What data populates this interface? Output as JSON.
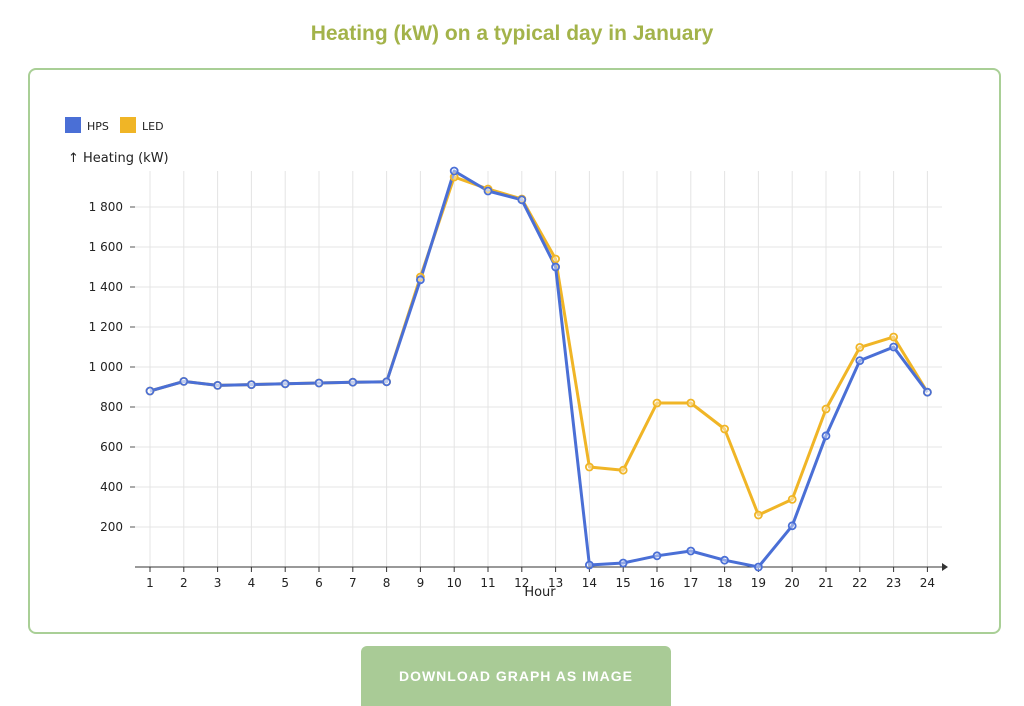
{
  "page": {
    "title": "Heating (kW) on a typical day in January"
  },
  "download_button_label": "DOWNLOAD GRAPH AS IMAGE",
  "chart_data": {
    "type": "line",
    "title": "Heating (kW) on a typical day in January",
    "xlabel": "Hour",
    "ylabel": "↑ Heating (kW)",
    "categories": [
      "1",
      "2",
      "3",
      "4",
      "5",
      "6",
      "7",
      "8",
      "9",
      "10",
      "11",
      "12",
      "13",
      "14",
      "15",
      "16",
      "17",
      "18",
      "19",
      "20",
      "21",
      "22",
      "23",
      "24"
    ],
    "yticks": [
      200,
      400,
      600,
      800,
      1000,
      1200,
      1400,
      1600,
      1800
    ],
    "ytick_labels": [
      "200",
      "400",
      "600",
      "800",
      "1 000",
      "1 200",
      "1 400",
      "1 600",
      "1 800"
    ],
    "ylim": [
      0,
      2000
    ],
    "grid": true,
    "legend_position": "top-left",
    "series": [
      {
        "name": "HPS",
        "color": "#4a6fd6",
        "values": [
          880,
          928,
          908,
          912,
          916,
          920,
          924,
          926,
          1436,
          1980,
          1880,
          1836,
          1500,
          10,
          20,
          56,
          80,
          34,
          0,
          206,
          656,
          1032,
          1100,
          874
        ]
      },
      {
        "name": "LED",
        "color": "#f0b526",
        "values": [
          880,
          928,
          908,
          912,
          916,
          920,
          924,
          926,
          1450,
          1950,
          1890,
          1840,
          1540,
          500,
          484,
          820,
          820,
          690,
          260,
          338,
          790,
          1098,
          1150,
          874
        ]
      }
    ]
  }
}
